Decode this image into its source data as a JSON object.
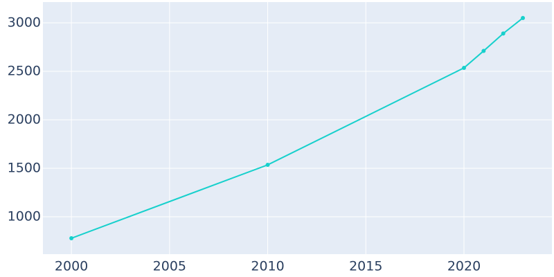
{
  "chart_data": {
    "type": "line",
    "x": [
      2000,
      2010,
      2020,
      2021,
      2022,
      2023
    ],
    "series": [
      {
        "color": "#17d0cc",
        "values": [
          778,
          1535,
          2535,
          2710,
          2890,
          3050
        ]
      }
    ],
    "xlim": [
      1998.55,
      2024.48
    ],
    "xticks": [
      2000,
      2005,
      2010,
      2015,
      2020
    ],
    "ylim": [
      614,
      3214
    ],
    "yticks": [
      1000,
      1500,
      2000,
      2500,
      3000
    ],
    "grid": true
  }
}
